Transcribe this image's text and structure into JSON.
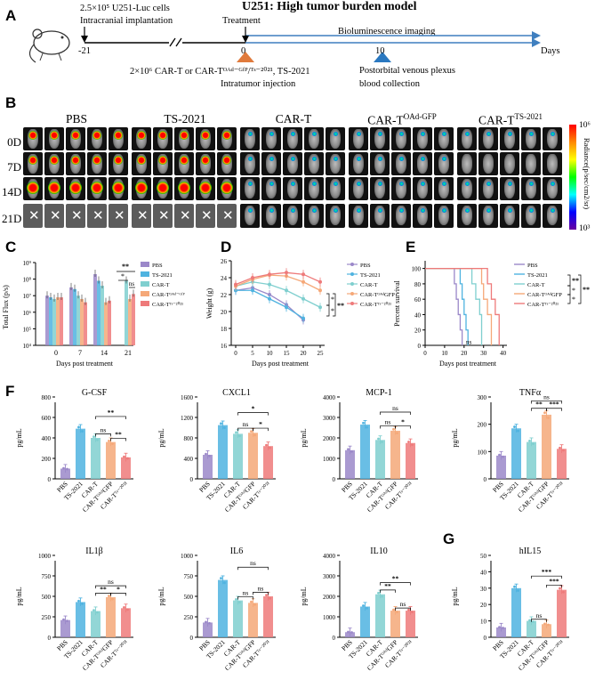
{
  "panel_labels": {
    "A": "A",
    "B": "B",
    "C": "C",
    "D": "D",
    "E": "E",
    "F": "F",
    "G": "G"
  },
  "panelA": {
    "title": "U251: High tumor burden model",
    "implant_line1": "2.5×10⁵ U251-Luc cells",
    "implant_line2": "Intracranial implantation",
    "treatment": "Treatment",
    "biolum": "Bioluminescence imaging",
    "tick_m21": "-21",
    "tick_0": "0",
    "tick_10": "10",
    "days": "Days",
    "inj_line1": "2×10⁶ CAR-T or CAR-Tᴼᴬᵈ⁻ᴳᶠᴾ/ᵀˢ⁻²⁰²¹, TS-2021",
    "inj_line2": "Intratumor injection",
    "blood_line1": "Postorbital venous plexus",
    "blood_line2": "blood collection"
  },
  "panelB": {
    "groups": [
      "PBS",
      "TS-2021",
      "CAR-T",
      "CAR-T",
      "CAR-T"
    ],
    "group_sup": [
      "",
      "",
      "",
      "OAd-GFP",
      "TS-2021"
    ],
    "rows": [
      "0D",
      "7D",
      "14D",
      "21D"
    ],
    "dead_mark": "✕",
    "colorbar_top": "10⁶",
    "colorbar_bottom": "10³",
    "colorbar_label": "Radiance(p/sec/cm2/sr)"
  },
  "panelC": {
    "ylabel": "Total Flux (p/s)",
    "xlabel": "Days post treatment",
    "yticks": [
      "10⁹",
      "10⁸",
      "10⁷",
      "10⁶",
      "10⁵",
      "10⁴"
    ],
    "xticks": [
      "0",
      "7",
      "14",
      "21"
    ],
    "sig": [
      "**",
      "*",
      "ns"
    ],
    "legend": [
      "PBS",
      "TS-2021",
      "CAR-T",
      "CAR-Tᴼᴬᵈ⁻ᴳᶠᴾ",
      "CAR-Tᵀˢ⁻²⁰²¹"
    ]
  },
  "panelD": {
    "ylabel": "Weight (g)",
    "xlabel": "Days post treatment",
    "yticks": [
      "26",
      "24",
      "22",
      "20",
      "18",
      "16"
    ],
    "xticks": [
      "0",
      "5",
      "10",
      "15",
      "20",
      "25"
    ],
    "sig": [
      "*",
      "*",
      "**"
    ],
    "legend": [
      "PBS",
      "TS-2021",
      "CAR-T",
      "CAR-TᴼᴬᵈGFP",
      "CAR-Tᵀˢ⁻²⁰²¹"
    ]
  },
  "panelE": {
    "ylabel": "Percent survival",
    "xlabel": "Days post treatment",
    "yticks": [
      "100",
      "80",
      "60",
      "40",
      "20",
      "0"
    ],
    "xticks": [
      "0",
      "10",
      "20",
      "30",
      "40"
    ],
    "sig": [
      "**",
      "*",
      "*",
      "**"
    ],
    "ns": "ns",
    "legend": [
      "PBS",
      "TS-2021",
      "CAR-T",
      "CAR-TᴼᴬᵈGFP",
      "CAR-Tᵀˢ⁻²⁰²¹"
    ]
  },
  "colors": {
    "PBS": "#9b88c9",
    "TS-2021": "#4fb3e0",
    "CAR-T": "#7fcfcf",
    "CAR-T OAd-GFP": "#f5a878",
    "CAR-T TS-2021": "#ee7a7a",
    "timeline_arrow": "#3f7fbf",
    "tri_treatment": "#e07a3c",
    "tri_blood": "#2a78c0"
  },
  "cytokine_xlabels": [
    "PBS",
    "TS-2021",
    "CAR-T",
    "CAR-TᴼᴬᵈGFP",
    "CAR-Tᵀˢ⁻²⁰²¹"
  ],
  "chart_data": [
    {
      "type": "bar",
      "title": "G-CSF",
      "ylabel": "pg/mL",
      "ylim": [
        0,
        800
      ],
      "yticks": [
        "800",
        "600",
        "400",
        "200",
        "0"
      ],
      "categories": [
        "PBS",
        "TS-2021",
        "CAR-T",
        "CAR-T OAd-GFP",
        "CAR-T TS-2021"
      ],
      "values": [
        100,
        490,
        400,
        360,
        210
      ],
      "sig": [
        [
          "CAR-T",
          "CAR-T OAd-GFP",
          "ns"
        ],
        [
          "CAR-T",
          "CAR-T TS-2021",
          "**"
        ],
        [
          "CAR-T OAd-GFP",
          "CAR-T TS-2021",
          "**"
        ]
      ]
    },
    {
      "type": "bar",
      "title": "CXCL1",
      "ylabel": "pg/mL",
      "ylim": [
        0,
        1600
      ],
      "yticks": [
        "1600",
        "1200",
        "800",
        "400",
        "0"
      ],
      "categories": [
        "PBS",
        "TS-2021",
        "CAR-T",
        "CAR-T OAd-GFP",
        "CAR-T TS-2021"
      ],
      "values": [
        470,
        1050,
        880,
        900,
        640
      ],
      "sig": [
        [
          "CAR-T",
          "CAR-T OAd-GFP",
          "ns"
        ],
        [
          "CAR-T",
          "CAR-T TS-2021",
          "*"
        ],
        [
          "CAR-T OAd-GFP",
          "CAR-T TS-2021",
          "*"
        ]
      ]
    },
    {
      "type": "bar",
      "title": "MCP-1",
      "ylabel": "pg/mL",
      "ylim": [
        0,
        4000
      ],
      "yticks": [
        "4000",
        "3000",
        "2000",
        "1000",
        "0"
      ],
      "categories": [
        "PBS",
        "TS-2021",
        "CAR-T",
        "CAR-T OAd-GFP",
        "CAR-T TS-2021"
      ],
      "values": [
        1400,
        2650,
        1900,
        2350,
        1750
      ],
      "sig": [
        [
          "CAR-T",
          "CAR-T OAd-GFP",
          "ns"
        ],
        [
          "CAR-T",
          "CAR-T TS-2021",
          "ns"
        ],
        [
          "CAR-T OAd-GFP",
          "CAR-T TS-2021",
          "*"
        ]
      ]
    },
    {
      "type": "bar",
      "title": "TNFα",
      "ylabel": "pg/mL",
      "ylim": [
        0,
        300
      ],
      "yticks": [
        "300",
        "200",
        "100",
        "0"
      ],
      "categories": [
        "PBS",
        "TS-2021",
        "CAR-T",
        "CAR-T OAd-GFP",
        "CAR-T TS-2021"
      ],
      "values": [
        85,
        185,
        135,
        235,
        110
      ],
      "sig": [
        [
          "CAR-T",
          "CAR-T TS-2021",
          "ns"
        ],
        [
          "CAR-T",
          "CAR-T OAd-GFP",
          "**"
        ],
        [
          "CAR-T OAd-GFP",
          "CAR-T TS-2021",
          "***"
        ]
      ]
    },
    {
      "type": "bar",
      "title": "IL1β",
      "ylabel": "pg/mL",
      "ylim": [
        0,
        1000
      ],
      "yticks": [
        "1000",
        "750",
        "500",
        "250",
        "0"
      ],
      "categories": [
        "PBS",
        "TS-2021",
        "CAR-T",
        "CAR-T OAd-GFP",
        "CAR-T TS-2021"
      ],
      "values": [
        210,
        430,
        320,
        490,
        355
      ],
      "sig": [
        [
          "CAR-T",
          "CAR-T TS-2021",
          "ns"
        ],
        [
          "CAR-T",
          "CAR-T OAd-GFP",
          "**"
        ],
        [
          "CAR-T OAd-GFP",
          "CAR-T TS-2021",
          "*"
        ]
      ]
    },
    {
      "type": "bar",
      "title": "IL6",
      "ylabel": "pg/mL",
      "ylim": [
        0,
        1000
      ],
      "yticks": [
        "1000",
        "750",
        "500",
        "250",
        "0"
      ],
      "categories": [
        "PBS",
        "TS-2021",
        "CAR-T",
        "CAR-T OAd-GFP",
        "CAR-T TS-2021"
      ],
      "values": [
        180,
        700,
        450,
        420,
        500
      ],
      "sig": [
        [
          "CAR-T",
          "CAR-T TS-2021",
          "ns"
        ],
        [
          "CAR-T",
          "CAR-T OAd-GFP",
          "ns"
        ],
        [
          "CAR-T OAd-GFP",
          "CAR-T TS-2021",
          "ns"
        ]
      ]
    },
    {
      "type": "bar",
      "title": "IL10",
      "ylabel": "pg/mL",
      "ylim": [
        0,
        4000
      ],
      "yticks": [
        "4000",
        "3000",
        "2000",
        "1000",
        "0"
      ],
      "categories": [
        "PBS",
        "TS-2021",
        "CAR-T",
        "CAR-T OAd-GFP",
        "CAR-T TS-2021"
      ],
      "values": [
        250,
        1500,
        2100,
        1300,
        1300
      ],
      "sig": [
        [
          "CAR-T",
          "CAR-T TS-2021",
          "**"
        ],
        [
          "CAR-T",
          "CAR-T OAd-GFP",
          "**"
        ],
        [
          "CAR-T OAd-GFP",
          "CAR-T TS-2021",
          "ns"
        ]
      ]
    },
    {
      "type": "bar",
      "title": "hIL15",
      "ylabel": "pg/mL",
      "ylim": [
        0,
        50
      ],
      "yticks": [
        "50",
        "40",
        "30",
        "20",
        "10",
        "0"
      ],
      "categories": [
        "PBS",
        "TS-2021",
        "CAR-T",
        "CAR-T OAd-GFP",
        "CAR-T TS-2021"
      ],
      "values": [
        6,
        30,
        10,
        8,
        29
      ],
      "sig": [
        [
          "CAR-T",
          "CAR-T TS-2021",
          "***"
        ],
        [
          "CAR-T",
          "CAR-T OAd-GFP",
          "ns"
        ],
        [
          "CAR-T OAd-GFP",
          "CAR-T TS-2021",
          "***"
        ]
      ]
    }
  ]
}
